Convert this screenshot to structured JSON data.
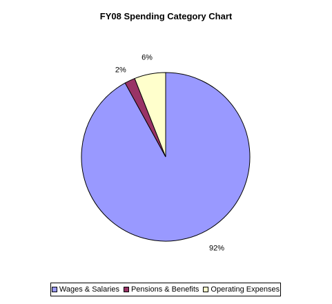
{
  "chart_data": {
    "type": "pie",
    "title": "FY08 Spending Category Chart",
    "slices": [
      {
        "name": "Wages & Salaries",
        "value": 92,
        "label": "92%",
        "color": "#9999ff"
      },
      {
        "name": "Pensions & Benefits",
        "value": 2,
        "label": "2%",
        "color": "#993366"
      },
      {
        "name": "Operating Expenses",
        "value": 6,
        "label": "6%",
        "color": "#ffffcc"
      }
    ],
    "legend": {
      "position": "bottom",
      "entries": [
        "Wages & Salaries",
        "Pensions & Benefits",
        "Operating Expenses"
      ]
    }
  }
}
